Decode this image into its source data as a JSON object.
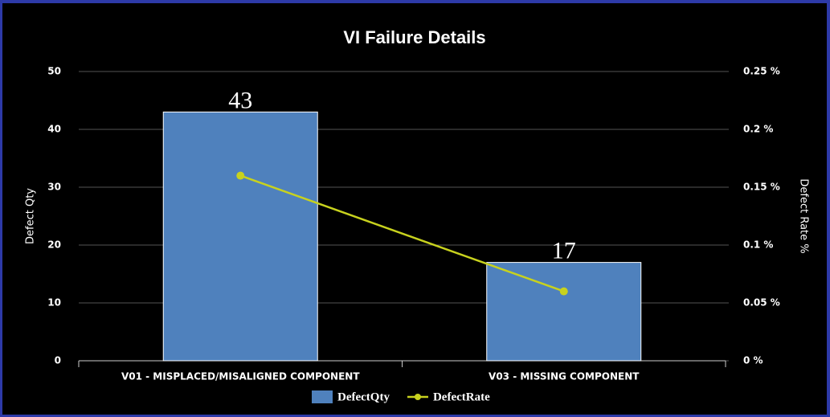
{
  "chart_data": {
    "type": "bar",
    "title": "VI Failure Details",
    "categories": [
      "V01 - MISPLACED/MISALIGNED COMPONENT",
      "V03 - MISSING COMPONENT"
    ],
    "series": [
      {
        "name": "DefectQty",
        "type": "bar",
        "color": "#4f81bd",
        "values": [
          43,
          17
        ]
      },
      {
        "name": "DefectRate",
        "type": "line",
        "color": "#c8d21e",
        "axis": "y2",
        "values": [
          0.16,
          0.06
        ]
      }
    ],
    "ylabel": "Defect Qty",
    "y2label": "Defect Rate %",
    "ylim": [
      0,
      50
    ],
    "yticks": [
      0,
      10,
      20,
      30,
      40,
      50
    ],
    "y2lim": [
      0,
      0.25
    ],
    "y2ticks": [
      {
        "value": 0,
        "label": "0 %"
      },
      {
        "value": 0.05,
        "label": "0.05 %"
      },
      {
        "value": 0.1,
        "label": "0.1 %"
      },
      {
        "value": 0.15,
        "label": "0.15 %"
      },
      {
        "value": 0.2,
        "label": "0.2 %"
      },
      {
        "value": 0.25,
        "label": "0.25 %"
      }
    ],
    "grid": true,
    "legend": "bottom"
  }
}
